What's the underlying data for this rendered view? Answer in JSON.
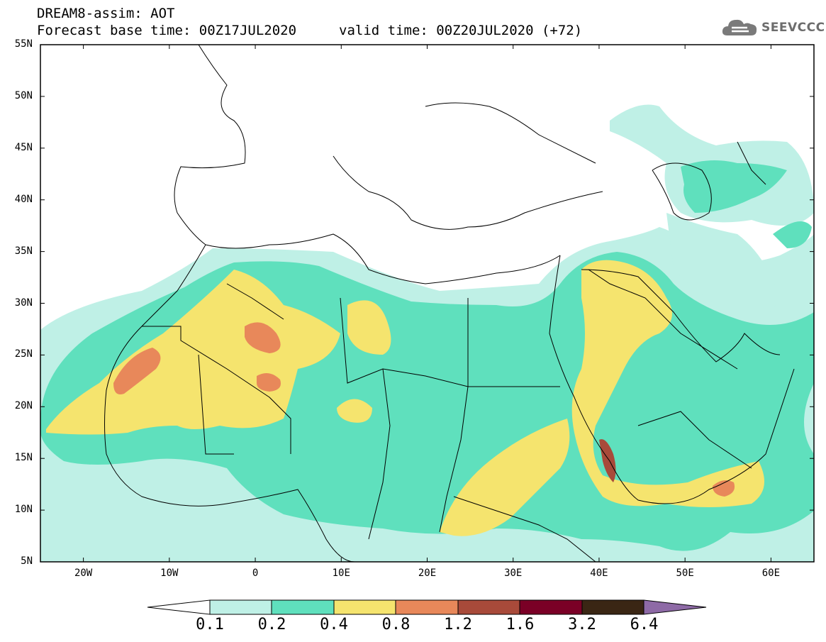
{
  "header": {
    "line1": "DREAM8-assim: AOT",
    "line2": "Forecast base time: 00Z17JUL2020",
    "line3": "valid time: 00Z20JUL2020 (+72)"
  },
  "logo": {
    "text": "SEEVCCC",
    "icon": "cloud-icon"
  },
  "map": {
    "lat_labels": [
      "55N",
      "50N",
      "45N",
      "40N",
      "35N",
      "30N",
      "25N",
      "20N",
      "15N",
      "10N",
      "5N"
    ],
    "lon_labels": [
      "20W",
      "10W",
      "0",
      "10E",
      "20E",
      "30E",
      "40E",
      "50E",
      "60E"
    ],
    "lat_range": [
      5,
      55
    ],
    "lon_range": [
      -25,
      65
    ]
  },
  "colorbar": {
    "labels": [
      "0.1",
      "0.2",
      "0.4",
      "0.8",
      "1.2",
      "1.6",
      "3.2",
      "6.4"
    ],
    "colors": [
      "#ffffff",
      "#bff0e6",
      "#5fe0bd",
      "#f5e46e",
      "#e8885a",
      "#a84a3a",
      "#7a0026",
      "#3a2614",
      "#8e6aa6"
    ]
  }
}
